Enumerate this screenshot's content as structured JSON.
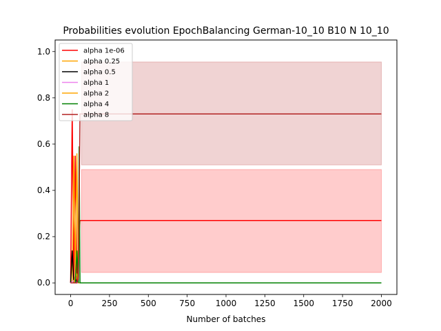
{
  "chart_data": {
    "type": "line",
    "title": "Probabilities evolution EpochBalancing German-10_10 B10 N 10_10",
    "xlabel": "Number of batches",
    "ylabel": "",
    "xlim": [
      -100,
      2100
    ],
    "ylim": [
      -0.05,
      1.05
    ],
    "xticks": [
      0,
      250,
      500,
      750,
      1000,
      1250,
      1500,
      1750,
      2000
    ],
    "yticks": [
      0.0,
      0.2,
      0.4,
      0.6,
      0.8,
      1.0
    ],
    "xtick_labels": [
      "0",
      "250",
      "500",
      "750",
      "1000",
      "1250",
      "1500",
      "1750",
      "2000"
    ],
    "ytick_labels": [
      "0.0",
      "0.2",
      "0.4",
      "0.6",
      "0.8",
      "1.0"
    ],
    "grid": false,
    "legend_position": "top-left",
    "series": [
      {
        "name": "alpha 1e-06",
        "color": "#ff0000",
        "x": [
          0,
          10,
          20,
          30,
          40,
          50,
          60,
          70,
          2000
        ],
        "y": [
          0.0,
          0.75,
          0.0,
          0.55,
          0.01,
          0.14,
          0.27,
          0.27,
          0.27
        ],
        "band": {
          "lower": 0.045,
          "upper": 0.49,
          "x_start": 70,
          "x_end": 2000
        }
      },
      {
        "name": "alpha 0.25",
        "color": "#ffa500",
        "x": [
          0,
          10,
          20,
          30,
          40,
          50,
          60,
          2000
        ],
        "y": [
          0.0,
          0.01,
          0.55,
          0.02,
          0.04,
          0.0,
          0.0,
          0.0
        ]
      },
      {
        "name": "alpha 0.5",
        "color": "#000000",
        "x": [
          0,
          10,
          20,
          30,
          40,
          50,
          2000
        ],
        "y": [
          0.0,
          0.14,
          0.0,
          0.02,
          0.0,
          0.0,
          0.0
        ]
      },
      {
        "name": "alpha 1",
        "color": "#ee82ee",
        "x": [
          0,
          20,
          40,
          60,
          2000
        ],
        "y": [
          0.0,
          0.01,
          0.0,
          0.0,
          0.0
        ]
      },
      {
        "name": "alpha 2",
        "color": "#ffa500",
        "x": [
          0,
          20,
          30,
          40,
          50,
          60,
          2000
        ],
        "y": [
          0.0,
          0.0,
          0.03,
          0.56,
          0.0,
          0.0,
          0.0
        ]
      },
      {
        "name": "alpha 4",
        "color": "#008000",
        "x": [
          0,
          30,
          40,
          50,
          55,
          60,
          2000
        ],
        "y": [
          0.0,
          0.0,
          0.14,
          0.0,
          0.59,
          0.0,
          0.0
        ]
      },
      {
        "name": "alpha 8",
        "color": "#b22222",
        "x": [
          0,
          40,
          50,
          60,
          70,
          2000
        ],
        "y": [
          0.0,
          0.0,
          0.02,
          0.73,
          0.73,
          0.73
        ],
        "band": {
          "lower": 0.51,
          "upper": 0.955,
          "x_start": 70,
          "x_end": 2000
        }
      }
    ]
  }
}
